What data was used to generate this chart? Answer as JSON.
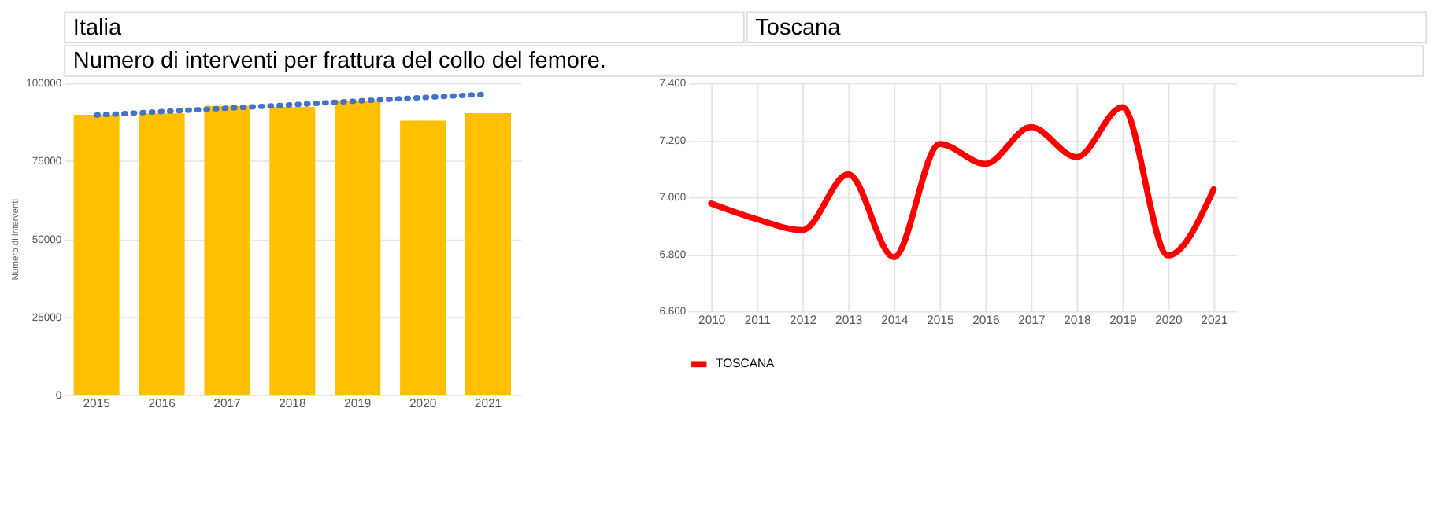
{
  "chart_data": [
    {
      "type": "bar",
      "title": "Italia",
      "subtitle": "Numero di interventi per frattura del collo del femore.",
      "ylabel": "Numero di interventi",
      "categories": [
        "2015",
        "2016",
        "2017",
        "2018",
        "2019",
        "2020",
        "2021"
      ],
      "series": [
        {
          "type": "bar",
          "color": "#ffc000",
          "values": [
            89800,
            90200,
            92600,
            92300,
            94400,
            87900,
            90300
          ]
        },
        {
          "type": "line",
          "color": "#4472c4",
          "line_style": "dotted",
          "values": [
            89700,
            90800,
            91900,
            93000,
            94200,
            95300,
            96400
          ]
        }
      ],
      "ylim": [
        0,
        100000
      ],
      "yticks": [
        0,
        25000,
        50000,
        75000,
        100000
      ],
      "grid": "y",
      "legend": false
    },
    {
      "type": "line",
      "title": "Toscana",
      "categories": [
        "2010",
        "2011",
        "2012",
        "2013",
        "2014",
        "2015",
        "2016",
        "2017",
        "2018",
        "2019",
        "2020",
        "2021"
      ],
      "series": [
        {
          "name": "TOSCANA",
          "color": "#ff0000",
          "values": [
            6977,
            6922,
            6884,
            7080,
            6789,
            7186,
            7116,
            7245,
            7140,
            7315,
            6795,
            7027
          ]
        }
      ],
      "ylim": [
        6600,
        7400
      ],
      "yticks": [
        {
          "value": 6600,
          "label": "6.600"
        },
        {
          "value": 6800,
          "label": "6.800"
        },
        {
          "value": 7000,
          "label": "7.000"
        },
        {
          "value": 7200,
          "label": "7.200"
        },
        {
          "value": 7400,
          "label": "7.400"
        }
      ],
      "grid": true,
      "legend": "bottom",
      "line_style": "solid"
    }
  ]
}
